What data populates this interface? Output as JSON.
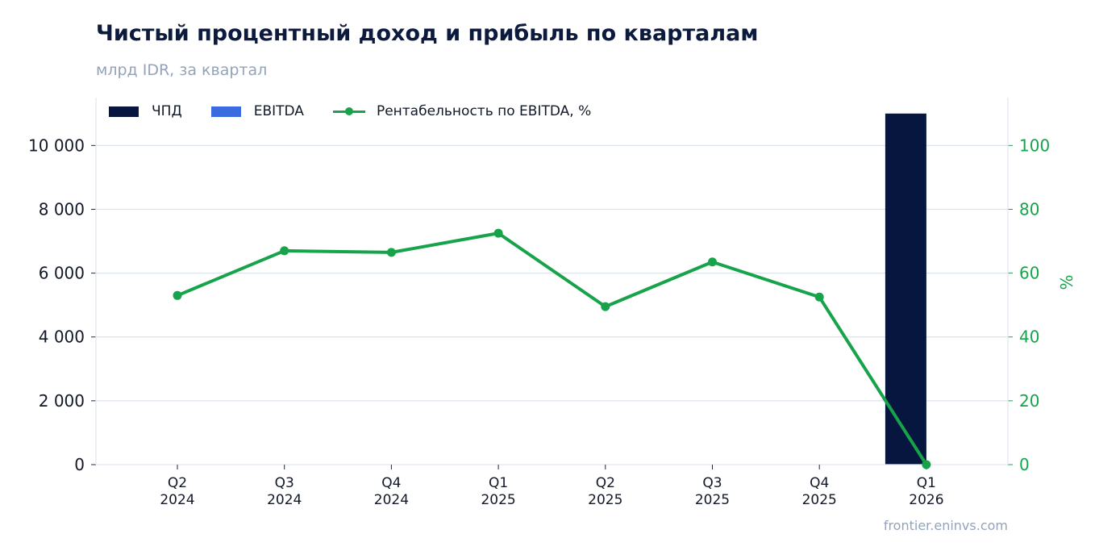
{
  "header": {
    "title": "Чистый процентный доход и прибыль по кварталам",
    "subtitle": "млрд IDR, за квартал"
  },
  "footer": {
    "source": "frontier.eninvs.com"
  },
  "colors": {
    "npd": "#06163f",
    "ebitda": "#3b6be0",
    "margin": "#16a34a",
    "grid": "#dde3ec",
    "axis_text": "#111827",
    "right_axis_text": "#16a34a"
  },
  "chart_data": {
    "type": "bar",
    "title": "Чистый процентный доход и прибыль по кварталам",
    "subtitle": "млрд IDR, за квартал",
    "categories": [
      "Q2 2024",
      "Q3 2024",
      "Q4 2024",
      "Q1 2025",
      "Q2 2025",
      "Q3 2025",
      "Q4 2025",
      "Q1 2026"
    ],
    "category_lines": [
      [
        "Q2",
        "2024"
      ],
      [
        "Q3",
        "2024"
      ],
      [
        "Q4",
        "2024"
      ],
      [
        "Q1",
        "2025"
      ],
      [
        "Q2",
        "2025"
      ],
      [
        "Q3",
        "2025"
      ],
      [
        "Q4",
        "2025"
      ],
      [
        "Q1",
        "2026"
      ]
    ],
    "series": [
      {
        "name": "ЧПД",
        "type": "bar",
        "axis": "left",
        "values": [
          0,
          0,
          0,
          0,
          0,
          0,
          0,
          11000
        ]
      },
      {
        "name": "EBITDA",
        "type": "bar",
        "axis": "left",
        "values": [
          0,
          0,
          0,
          0,
          0,
          0,
          0,
          0
        ]
      },
      {
        "name": "Рентабельность по EBITDA, %",
        "type": "line",
        "axis": "right",
        "values": [
          53,
          67,
          66.5,
          72.5,
          49.5,
          63.5,
          52.5,
          0
        ]
      }
    ],
    "y_left": {
      "ylim": [
        0,
        11500
      ],
      "ticks": [
        0,
        2000,
        4000,
        6000,
        8000,
        10000
      ],
      "tick_labels": [
        "0",
        "2 000",
        "4 000",
        "6 000",
        "8 000",
        "10 000"
      ]
    },
    "y_right": {
      "label": "%",
      "ylim": [
        0,
        115
      ],
      "ticks": [
        0,
        20,
        40,
        60,
        80,
        100
      ],
      "tick_labels": [
        "0",
        "20",
        "40",
        "60",
        "80",
        "100"
      ]
    },
    "grid": true,
    "legend_position": "top-left"
  }
}
